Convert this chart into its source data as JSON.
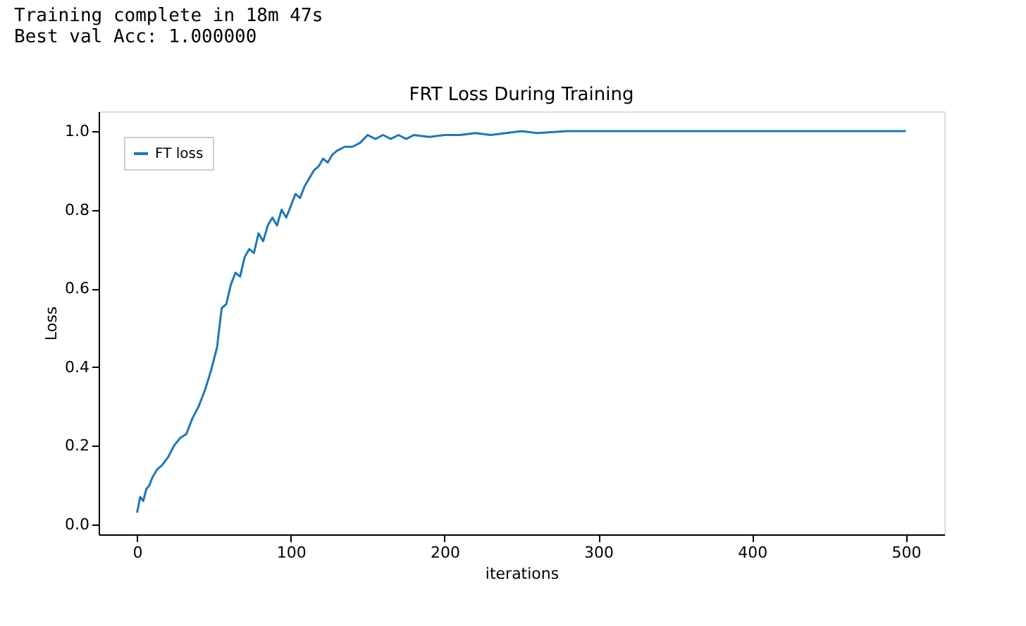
{
  "chart_data": {
    "type": "line",
    "title": "FRT Loss During Training",
    "xlabel": "iterations",
    "ylabel": "Loss",
    "annotations": [
      "Training complete in 18m 47s",
      "Best val Acc: 1.000000"
    ],
    "x": [
      0,
      2,
      4,
      6,
      8,
      10,
      13,
      16,
      20,
      24,
      28,
      32,
      36,
      40,
      44,
      48,
      52,
      55,
      58,
      61,
      64,
      67,
      70,
      73,
      76,
      79,
      82,
      85,
      88,
      91,
      94,
      97,
      100,
      103,
      106,
      109,
      112,
      115,
      118,
      121,
      124,
      127,
      130,
      135,
      140,
      145,
      150,
      155,
      160,
      165,
      170,
      175,
      180,
      190,
      200,
      210,
      220,
      230,
      240,
      250,
      260,
      280,
      300,
      320,
      340,
      360,
      380,
      400,
      420,
      440,
      460,
      480,
      500
    ],
    "series": [
      {
        "name": "FT loss",
        "color": "#1f77b4",
        "values": [
          0.03,
          0.07,
          0.06,
          0.09,
          0.1,
          0.12,
          0.14,
          0.15,
          0.17,
          0.2,
          0.22,
          0.23,
          0.27,
          0.3,
          0.34,
          0.39,
          0.45,
          0.55,
          0.56,
          0.61,
          0.64,
          0.63,
          0.68,
          0.7,
          0.69,
          0.74,
          0.72,
          0.76,
          0.78,
          0.76,
          0.8,
          0.78,
          0.81,
          0.84,
          0.83,
          0.86,
          0.88,
          0.9,
          0.91,
          0.93,
          0.92,
          0.94,
          0.95,
          0.96,
          0.96,
          0.97,
          0.99,
          0.98,
          0.99,
          0.98,
          0.99,
          0.98,
          0.99,
          0.985,
          0.99,
          0.99,
          0.995,
          0.99,
          0.995,
          1.0,
          0.995,
          1.0,
          1.0,
          1.0,
          1.0,
          1.0,
          1.0,
          1.0,
          1.0,
          1.0,
          1.0,
          1.0,
          1.0
        ]
      }
    ],
    "xlim": [
      -25,
      525
    ],
    "ylim": [
      -0.025,
      1.05
    ],
    "xticks": [
      0,
      100,
      200,
      300,
      400,
      500
    ],
    "yticks": [
      {
        "value": 0,
        "label": "0.0"
      },
      0.2,
      0.4,
      0.6,
      0.8,
      {
        "value": 1,
        "label": "1.0"
      }
    ],
    "legend": "top left",
    "grid": false,
    "marker": "none",
    "line_style": "solid"
  }
}
